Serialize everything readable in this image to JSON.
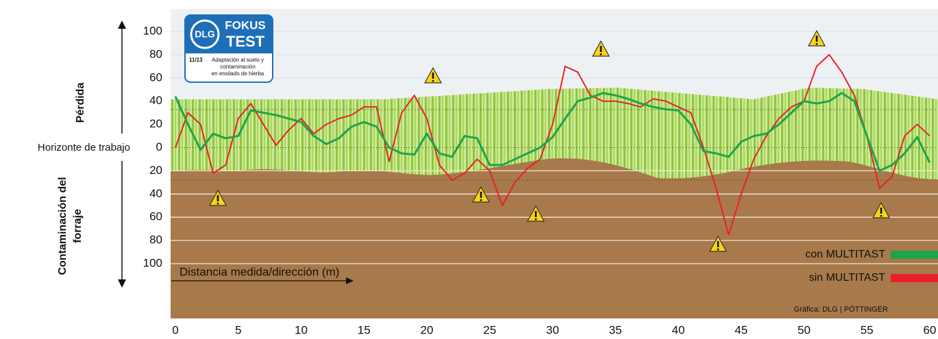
{
  "chart_data": {
    "type": "line",
    "zero_label": "Horizonte de trabajo",
    "ylabel_top": "Pérdida",
    "ylabel_bottom": [
      "Contaminación del",
      "forraje"
    ],
    "xlabel": "Distancia medida/dirección (m)",
    "credit": "Gráfica: DLG | PÖTTINGER",
    "badge": {
      "brand": "DLG",
      "line1": "FOKUS",
      "line2": "TEST",
      "code": "11/13",
      "description": [
        "Adaptación al suelo y",
        "contaminación",
        "en ensilado de hierba"
      ]
    },
    "legend": "lower right",
    "x": [
      0,
      1,
      2,
      3,
      4,
      5,
      6,
      7,
      8,
      9,
      10,
      11,
      12,
      13,
      14,
      15,
      16,
      17,
      18,
      19,
      20,
      21,
      22,
      23,
      24,
      25,
      26,
      27,
      28,
      29,
      30,
      31,
      32,
      33,
      34,
      35,
      36,
      37,
      38,
      39,
      40,
      41,
      42,
      43,
      44,
      45,
      46,
      47,
      48,
      49,
      50,
      51,
      52,
      53,
      54,
      55,
      56,
      57,
      58,
      59,
      60
    ],
    "xlim": [
      0,
      60
    ],
    "xticks": [
      0,
      5,
      10,
      15,
      20,
      25,
      30,
      35,
      40,
      45,
      50,
      55,
      60
    ],
    "ylim": [
      -100,
      100
    ],
    "yticks": [
      100,
      80,
      60,
      40,
      20,
      0,
      {
        "value": -20,
        "label": "20"
      },
      {
        "value": -40,
        "label": "40"
      },
      {
        "value": -60,
        "label": "60"
      },
      {
        "value": -80,
        "label": "80"
      },
      {
        "value": -100,
        "label": "100"
      }
    ],
    "series": [
      {
        "name": "con MULTITAST",
        "color": "#1fa34a",
        "values": [
          44,
          20,
          -2,
          12,
          8,
          10,
          32,
          30,
          28,
          25,
          22,
          10,
          3,
          8,
          18,
          22,
          18,
          0,
          -5,
          -6,
          12,
          -5,
          -8,
          10,
          8,
          -15,
          -15,
          -10,
          -5,
          0,
          9,
          25,
          40,
          43,
          47,
          45,
          42,
          38,
          35,
          33,
          32,
          20,
          -3,
          -5,
          -8,
          5,
          10,
          12,
          20,
          30,
          40,
          38,
          40,
          47,
          40,
          10,
          -20,
          -15,
          -5,
          9,
          -13
        ]
      },
      {
        "name": "sin MULTITAST",
        "color": "#e8202a",
        "values": [
          0,
          30,
          20,
          -22,
          -15,
          25,
          38,
          20,
          2,
          15,
          25,
          12,
          20,
          25,
          28,
          35,
          35,
          -12,
          30,
          45,
          25,
          -15,
          -28,
          -22,
          -10,
          -20,
          -50,
          -30,
          -18,
          -10,
          20,
          70,
          65,
          45,
          40,
          40,
          38,
          35,
          42,
          40,
          35,
          30,
          0,
          -35,
          -75,
          -40,
          -10,
          10,
          25,
          35,
          40,
          70,
          80,
          65,
          45,
          10,
          -35,
          -25,
          10,
          20,
          10
        ]
      }
    ]
  }
}
